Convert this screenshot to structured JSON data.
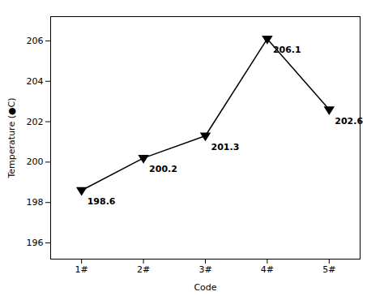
{
  "chart_data": {
    "type": "line",
    "x": [
      1,
      2,
      3,
      4,
      5
    ],
    "values": [
      198.6,
      200.2,
      201.3,
      206.1,
      202.6
    ],
    "xlabel": "Code",
    "ylabel": "Temperature (●C)",
    "xlim": [
      0.5,
      5.5
    ],
    "xticks": [
      {
        "value": 1,
        "label": "1#"
      },
      {
        "value": 2,
        "label": "2#"
      },
      {
        "value": 3,
        "label": "3#"
      },
      {
        "value": 4,
        "label": "4#"
      },
      {
        "value": 5,
        "label": "5#"
      }
    ],
    "ylim": [
      195.2,
      207.2
    ],
    "yticks": [
      196,
      198,
      200,
      202,
      204,
      206
    ],
    "color": "#000000",
    "marker": "triangle-down",
    "data_labels": true,
    "grid": false
  }
}
